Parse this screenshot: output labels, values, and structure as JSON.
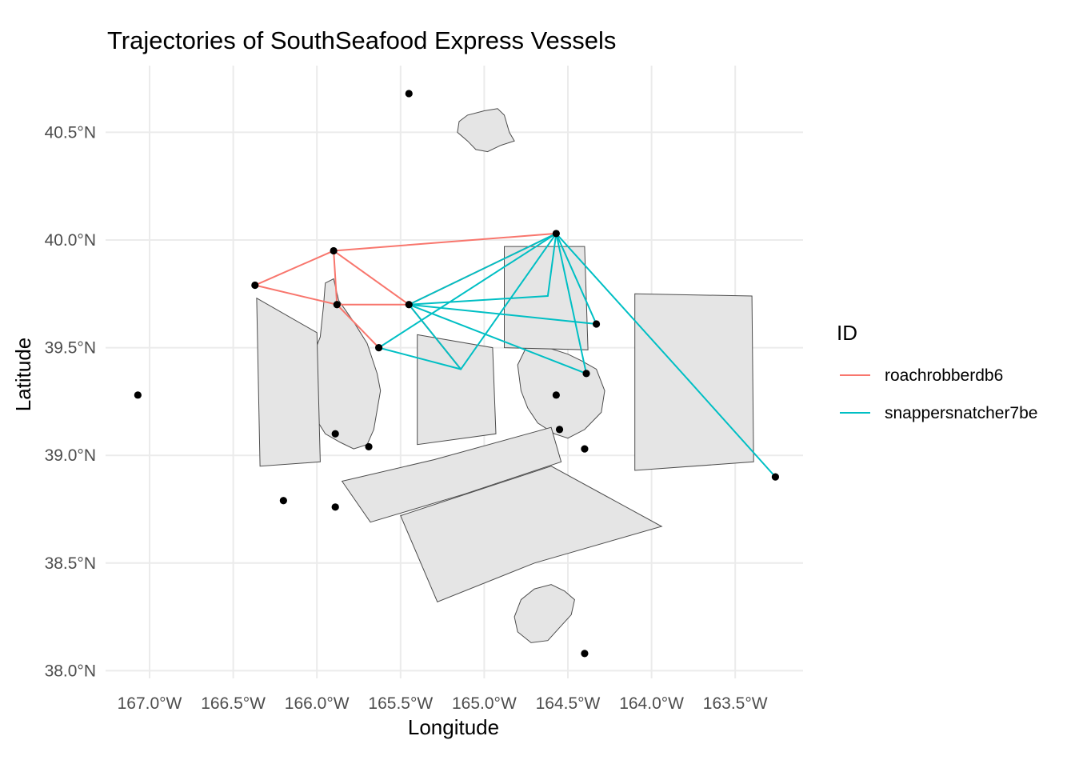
{
  "chart_data": {
    "type": "map-trajectories",
    "title": "Trajectories of SouthSeafood Express Vessels",
    "xlabel": "Longitude",
    "ylabel": "Latitude",
    "xlim": [
      -167.2,
      -162.8
    ],
    "ylim": [
      37.96,
      40.8
    ],
    "x_ticks": [
      -167.0,
      -166.5,
      -166.0,
      -165.5,
      -165.0,
      -164.5,
      -164.0,
      -163.5
    ],
    "x_tick_labels": [
      "167.0°W",
      "166.5°W",
      "166.0°W",
      "165.5°W",
      "165.0°W",
      "164.5°W",
      "164.0°W",
      "163.5°W"
    ],
    "y_ticks": [
      38.0,
      38.5,
      39.0,
      39.5,
      40.0,
      40.5
    ],
    "y_tick_labels": [
      "38.0°N",
      "38.5°N",
      "39.0°N",
      "39.5°N",
      "40.0°N",
      "40.5°N"
    ],
    "grid": true,
    "legend": {
      "title": "ID",
      "position": "right",
      "entries": [
        {
          "name": "roachrobberdb6",
          "color": "#F8766D"
        },
        {
          "name": "snappersnatcher7be",
          "color": "#00BFC4"
        }
      ]
    },
    "land_polygons": [
      {
        "name": "north-island",
        "points": [
          [
            -165.15,
            40.55
          ],
          [
            -165.1,
            40.58
          ],
          [
            -165.0,
            40.6
          ],
          [
            -164.92,
            40.61
          ],
          [
            -164.88,
            40.58
          ],
          [
            -164.85,
            40.5
          ],
          [
            -164.82,
            40.46
          ],
          [
            -164.9,
            40.44
          ],
          [
            -164.98,
            40.41
          ],
          [
            -165.05,
            40.42
          ],
          [
            -165.1,
            40.46
          ],
          [
            -165.16,
            40.5
          ]
        ]
      },
      {
        "name": "west-island",
        "points": [
          [
            -165.95,
            39.8
          ],
          [
            -165.9,
            39.82
          ],
          [
            -165.87,
            39.72
          ],
          [
            -165.78,
            39.62
          ],
          [
            -165.7,
            39.52
          ],
          [
            -165.64,
            39.38
          ],
          [
            -165.62,
            39.3
          ],
          [
            -165.66,
            39.12
          ],
          [
            -165.7,
            39.05
          ],
          [
            -165.78,
            39.03
          ],
          [
            -165.86,
            39.06
          ],
          [
            -165.95,
            39.1
          ],
          [
            -166.03,
            39.2
          ],
          [
            -166.06,
            39.3
          ],
          [
            -166.03,
            39.45
          ],
          [
            -165.98,
            39.55
          ],
          [
            -165.96,
            39.7
          ]
        ]
      },
      {
        "name": "east-island",
        "points": [
          [
            -164.75,
            39.5
          ],
          [
            -164.62,
            39.5
          ],
          [
            -164.5,
            39.47
          ],
          [
            -164.42,
            39.44
          ],
          [
            -164.33,
            39.4
          ],
          [
            -164.28,
            39.3
          ],
          [
            -164.3,
            39.2
          ],
          [
            -164.4,
            39.12
          ],
          [
            -164.5,
            39.08
          ],
          [
            -164.58,
            39.1
          ],
          [
            -164.68,
            39.15
          ],
          [
            -164.74,
            39.22
          ],
          [
            -164.78,
            39.3
          ],
          [
            -164.8,
            39.42
          ]
        ]
      },
      {
        "name": "south-island",
        "points": [
          [
            -164.7,
            38.38
          ],
          [
            -164.6,
            38.4
          ],
          [
            -164.52,
            38.37
          ],
          [
            -164.46,
            38.33
          ],
          [
            -164.48,
            38.26
          ],
          [
            -164.55,
            38.2
          ],
          [
            -164.62,
            38.14
          ],
          [
            -164.72,
            38.13
          ],
          [
            -164.8,
            38.18
          ],
          [
            -164.82,
            38.25
          ],
          [
            -164.78,
            38.33
          ]
        ]
      },
      {
        "name": "zone-west",
        "points": [
          [
            -166.36,
            39.73
          ],
          [
            -166.0,
            39.57
          ],
          [
            -165.98,
            38.97
          ],
          [
            -166.34,
            38.95
          ]
        ]
      },
      {
        "name": "zone-mid",
        "points": [
          [
            -165.4,
            39.56
          ],
          [
            -164.95,
            39.5
          ],
          [
            -164.93,
            39.1
          ],
          [
            -165.4,
            39.05
          ]
        ]
      },
      {
        "name": "zone-ne",
        "points": [
          [
            -164.88,
            39.97
          ],
          [
            -164.4,
            39.97
          ],
          [
            -164.38,
            39.49
          ],
          [
            -164.88,
            39.5
          ]
        ]
      },
      {
        "name": "zone-east",
        "points": [
          [
            -164.1,
            39.75
          ],
          [
            -163.4,
            39.74
          ],
          [
            -163.39,
            38.97
          ],
          [
            -164.1,
            38.93
          ]
        ]
      },
      {
        "name": "zone-strip",
        "points": [
          [
            -165.85,
            38.88
          ],
          [
            -165.3,
            38.98
          ],
          [
            -164.6,
            39.13
          ],
          [
            -164.54,
            38.97
          ],
          [
            -165.12,
            38.82
          ],
          [
            -165.68,
            38.69
          ]
        ]
      },
      {
        "name": "zone-south",
        "points": [
          [
            -165.5,
            38.72
          ],
          [
            -164.6,
            38.95
          ],
          [
            -163.94,
            38.67
          ],
          [
            -164.7,
            38.5
          ],
          [
            -165.28,
            38.32
          ]
        ]
      }
    ],
    "points": [
      [
        -165.45,
        40.68
      ],
      [
        -164.57,
        40.03
      ],
      [
        -165.9,
        39.95
      ],
      [
        -166.37,
        39.79
      ],
      [
        -165.88,
        39.7
      ],
      [
        -165.45,
        39.7
      ],
      [
        -164.33,
        39.61
      ],
      [
        -165.63,
        39.5
      ],
      [
        -164.39,
        39.38
      ],
      [
        -167.07,
        39.28
      ],
      [
        -164.57,
        39.28
      ],
      [
        -165.89,
        39.1
      ],
      [
        -164.55,
        39.12
      ],
      [
        -165.69,
        39.04
      ],
      [
        -164.4,
        39.03
      ],
      [
        -163.26,
        38.9
      ],
      [
        -166.2,
        38.79
      ],
      [
        -165.89,
        38.76
      ],
      [
        -164.4,
        38.08
      ]
    ],
    "series": [
      {
        "name": "roachrobberdb6",
        "segments": [
          [
            [
              -166.37,
              39.79
            ],
            [
              -165.9,
              39.95
            ]
          ],
          [
            [
              -165.9,
              39.95
            ],
            [
              -164.57,
              40.03
            ]
          ],
          [
            [
              -165.9,
              39.95
            ],
            [
              -165.88,
              39.7
            ]
          ],
          [
            [
              -165.9,
              39.95
            ],
            [
              -165.45,
              39.7
            ]
          ],
          [
            [
              -166.37,
              39.79
            ],
            [
              -165.88,
              39.7
            ]
          ],
          [
            [
              -165.88,
              39.7
            ],
            [
              -165.45,
              39.7
            ]
          ],
          [
            [
              -165.88,
              39.7
            ],
            [
              -165.63,
              39.5
            ]
          ],
          [
            [
              -165.45,
              39.7
            ],
            [
              -165.14,
              39.4
            ]
          ],
          [
            [
              -165.45,
              39.7
            ],
            [
              -164.57,
              40.03
            ]
          ]
        ]
      },
      {
        "name": "snappersnatcher7be",
        "segments": [
          [
            [
              -165.63,
              39.5
            ],
            [
              -165.14,
              39.4
            ]
          ],
          [
            [
              -165.14,
              39.4
            ],
            [
              -164.57,
              40.03
            ]
          ],
          [
            [
              -165.63,
              39.5
            ],
            [
              -164.57,
              40.03
            ]
          ],
          [
            [
              -165.45,
              39.7
            ],
            [
              -164.57,
              40.03
            ]
          ],
          [
            [
              -165.45,
              39.7
            ],
            [
              -164.62,
              39.74
            ]
          ],
          [
            [
              -164.62,
              39.74
            ],
            [
              -164.57,
              40.03
            ]
          ],
          [
            [
              -165.45,
              39.7
            ],
            [
              -164.33,
              39.61
            ]
          ],
          [
            [
              -164.33,
              39.61
            ],
            [
              -164.57,
              40.03
            ]
          ],
          [
            [
              -165.45,
              39.7
            ],
            [
              -164.39,
              39.38
            ]
          ],
          [
            [
              -164.39,
              39.38
            ],
            [
              -164.57,
              40.03
            ]
          ],
          [
            [
              -165.45,
              39.7
            ],
            [
              -165.14,
              39.4
            ]
          ],
          [
            [
              -164.57,
              40.03
            ],
            [
              -163.78,
              39.35
            ]
          ],
          [
            [
              -163.78,
              39.35
            ],
            [
              -163.26,
              38.9
            ]
          ]
        ]
      }
    ]
  }
}
